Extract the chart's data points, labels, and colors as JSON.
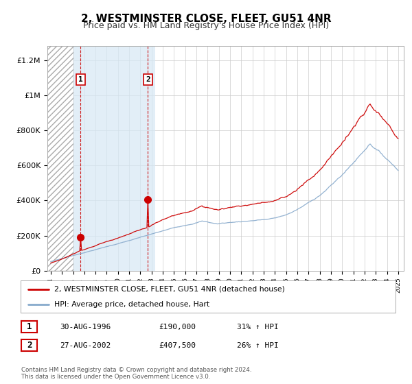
{
  "title": "2, WESTMINSTER CLOSE, FLEET, GU51 4NR",
  "subtitle": "Price paid vs. HM Land Registry's House Price Index (HPI)",
  "title_fontsize": 11,
  "subtitle_fontsize": 9,
  "ylabel_ticks": [
    "£0",
    "£200K",
    "£400K",
    "£600K",
    "£800K",
    "£1M",
    "£1.2M"
  ],
  "ytick_vals": [
    0,
    200000,
    400000,
    600000,
    800000,
    1000000,
    1200000
  ],
  "ylim": [
    0,
    1280000
  ],
  "xlim_start": 1993.7,
  "xlim_end": 2025.5,
  "sale1_year": 1996.667,
  "sale1_price": 190000,
  "sale2_year": 2002.667,
  "sale2_price": 407500,
  "hatch_start": 1993.7,
  "hatch_end": 1996.0,
  "fill_start": 1996.0,
  "fill_end": 2003.3,
  "legend_line1": "2, WESTMINSTER CLOSE, FLEET, GU51 4NR (detached house)",
  "legend_line2": "HPI: Average price, detached house, Hart",
  "table_row1": [
    "1",
    "30-AUG-1996",
    "£190,000",
    "31% ↑ HPI"
  ],
  "table_row2": [
    "2",
    "27-AUG-2002",
    "£407,500",
    "26% ↑ HPI"
  ],
  "footer": "Contains HM Land Registry data © Crown copyright and database right 2024.\nThis data is licensed under the Open Government Licence v3.0.",
  "line_color_red": "#CC0000",
  "line_color_blue": "#88AACC",
  "background_color": "#FFFFFF",
  "grid_color": "#CCCCCC"
}
